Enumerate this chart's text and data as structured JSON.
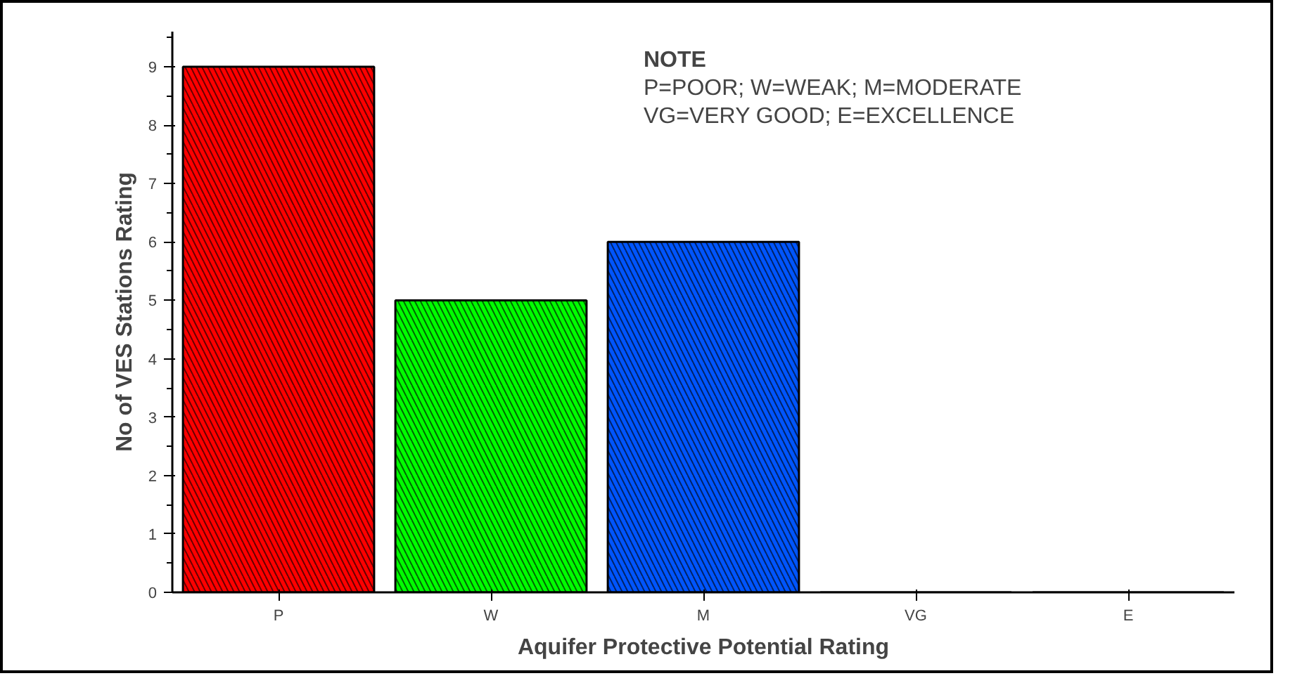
{
  "chart_data": {
    "type": "bar",
    "xlabel": "Aquifer Protective Potential Rating",
    "ylabel": "No of VES Stations Rating",
    "categories": [
      "P",
      "W",
      "M",
      "VG",
      "E"
    ],
    "values": [
      9,
      5,
      6,
      0,
      0
    ],
    "colors": [
      "#ff0000",
      "#00ff00",
      "#0055ff",
      "#888888",
      "#888888"
    ],
    "ylim": [
      0,
      9.6
    ],
    "yticks": [
      0,
      1,
      2,
      3,
      4,
      5,
      6,
      7,
      8,
      9
    ],
    "grid": false,
    "annotations": [
      "NOTE",
      "P=POOR; W=WEAK; M=MODERATE",
      "VG=VERY GOOD; E=EXCELLENCE"
    ]
  }
}
